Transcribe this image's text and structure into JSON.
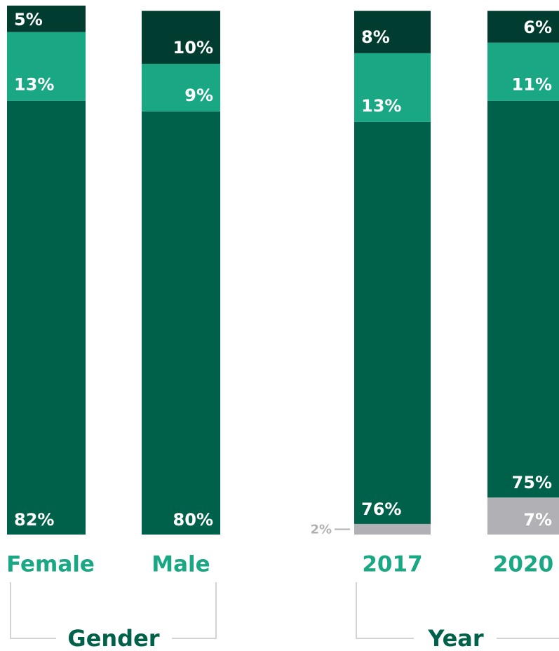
{
  "chart_data": {
    "type": "stacked_bar",
    "categories": [
      "Female",
      "Male",
      "2017",
      "2020"
    ],
    "groups": [
      "Gender",
      "Year"
    ],
    "ylim": [
      0,
      100
    ],
    "series": [
      {
        "color": "#b1b1b5",
        "values": [
          null,
          null,
          2,
          7
        ],
        "value_labels": [
          null,
          null,
          "2%",
          "7%"
        ]
      },
      {
        "color": "#00614a",
        "values": [
          82,
          80,
          76,
          75
        ],
        "value_labels": [
          "82%",
          "80%",
          "76%",
          "75%"
        ]
      },
      {
        "color": "#1aa784",
        "values": [
          13,
          9,
          13,
          11
        ],
        "value_labels": [
          "13%",
          "9%",
          "13%",
          "11%"
        ]
      },
      {
        "color": "#003d30",
        "values": [
          5,
          10,
          8,
          6
        ],
        "value_labels": [
          "5%",
          "10%",
          "8%",
          "6%"
        ]
      }
    ]
  }
}
